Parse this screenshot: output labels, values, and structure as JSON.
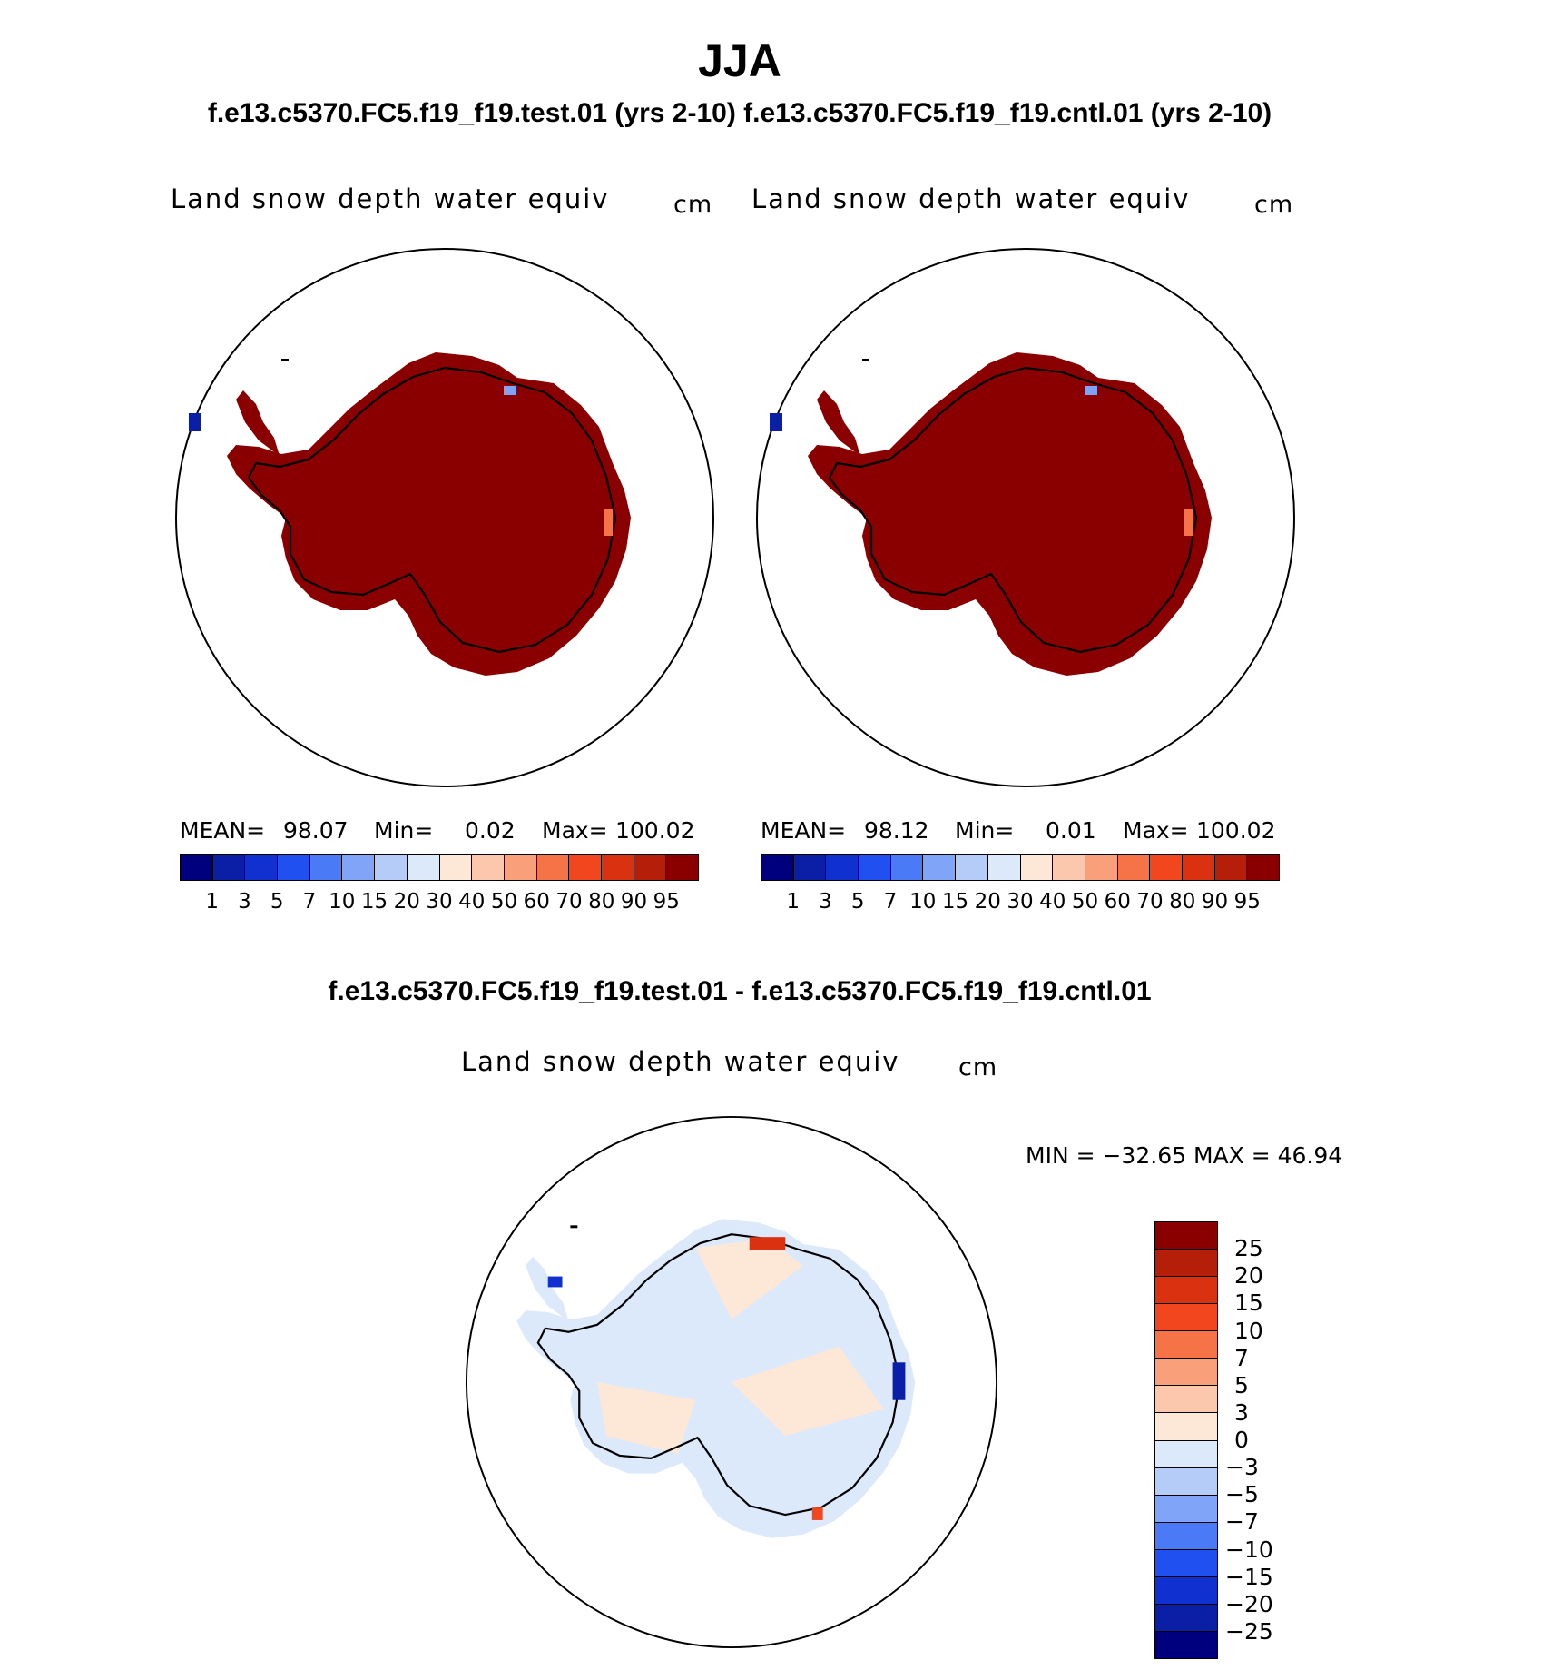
{
  "title": "JJA",
  "case_titles": "f.e13.c5370.FC5.f19_f19.test.01 (yrs 2-10) f.e13.c5370.FC5.f19_f19.cntl.01 (yrs 2-10)",
  "diff_title": "f.e13.c5370.FC5.f19_f19.test.01 - f.e13.c5370.FC5.f19_f19.cntl.01",
  "panels": [
    {
      "variable": "Land snow depth water equiv",
      "units": "cm",
      "mean_label": "MEAN=",
      "mean_value": "98.07",
      "min_label": "Min=",
      "min_value": "0.02",
      "max_label": "Max=",
      "max_value": "100.02"
    },
    {
      "variable": "Land snow depth water equiv",
      "units": "cm",
      "mean_label": "MEAN=",
      "mean_value": "98.12",
      "min_label": "Min=",
      "min_value": "0.01",
      "max_label": "Max=",
      "max_value": "100.02"
    }
  ],
  "diff_panel": {
    "variable": "Land snow depth water equiv",
    "units": "cm",
    "minmax_text": "MIN = −32.65 MAX =   46.94"
  },
  "abs_colorbar": {
    "colors": [
      "#00007f",
      "#0a1fa6",
      "#1030d0",
      "#2050f0",
      "#4a7af5",
      "#80a5f8",
      "#b5ccf9",
      "#dbe9fb",
      "#fde8d8",
      "#fbc8ad",
      "#f9a07a",
      "#f57346",
      "#f2461f",
      "#da3110",
      "#b51e08",
      "#8a0000"
    ],
    "ticks": [
      "1",
      "3",
      "5",
      "7",
      "10",
      "15",
      "20",
      "30",
      "40",
      "50",
      "60",
      "70",
      "80",
      "90",
      "95"
    ]
  },
  "diff_colorbar": {
    "colors": [
      "#8a0000",
      "#b51e08",
      "#da3110",
      "#f2461f",
      "#f57346",
      "#f9a07a",
      "#fbc8ad",
      "#fde8d8",
      "#dbe9fb",
      "#b5ccf9",
      "#80a5f8",
      "#4a7af5",
      "#2050f0",
      "#1030d0",
      "#0a1fa6",
      "#00007f"
    ],
    "ticks": [
      "25",
      "20",
      "15",
      "10",
      "7",
      "5",
      "3",
      "0",
      "−3",
      "−5",
      "−7",
      "−10",
      "−15",
      "−20",
      "−25"
    ]
  },
  "map_colors": {
    "abs_fill": "#8a0000",
    "diff_warm": "#fde8d8",
    "diff_cool": "#dbe9fb"
  }
}
